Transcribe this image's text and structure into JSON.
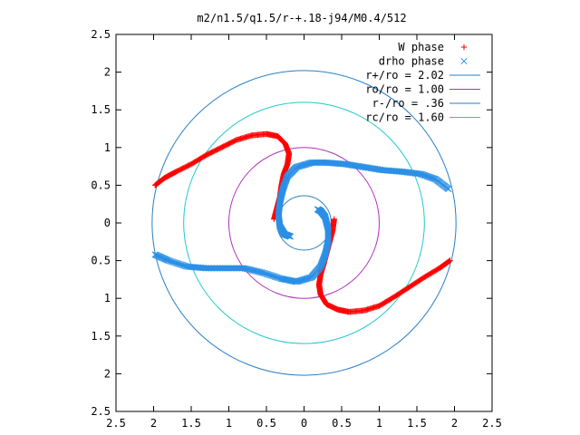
{
  "chart_data": {
    "type": "scatter",
    "title": "m2/n1.5/q1.5/r-+.18-j94/M0.4/512",
    "xlabel": "",
    "ylabel": "",
    "xlim": [
      -2.5,
      2.5
    ],
    "ylim": [
      -2.5,
      2.5
    ],
    "x_tick_values": [
      -2.5,
      -2,
      -1.5,
      -1,
      -0.5,
      0,
      0.5,
      1,
      1.5,
      2,
      2.5
    ],
    "x_tick_labels": [
      "2.5",
      "2",
      "1.5",
      "1",
      "0.5",
      "0",
      "0.5",
      "1",
      "1.5",
      "2",
      "2.5"
    ],
    "y_tick_values": [
      2.5,
      2,
      1.5,
      1,
      0.5,
      0,
      -0.5,
      -1,
      -1.5,
      -2,
      -2.5
    ],
    "y_tick_labels": [
      "2.5",
      "2",
      "1.5",
      "1",
      "0.5",
      "0",
      "0.5",
      "1",
      "1.5",
      "2",
      "2.5"
    ],
    "grid": false,
    "legend_position": "top-right",
    "series": [
      {
        "name": "W phase",
        "kind": "points",
        "marker": "plus",
        "color": "#ff0000",
        "arms": [
          [
            [
              -1.98,
              0.5
            ],
            [
              -1.85,
              0.6
            ],
            [
              -1.7,
              0.68
            ],
            [
              -1.5,
              0.78
            ],
            [
              -1.3,
              0.9
            ],
            [
              -1.1,
              1.0
            ],
            [
              -0.9,
              1.1
            ],
            [
              -0.7,
              1.16
            ],
            [
              -0.5,
              1.18
            ],
            [
              -0.35,
              1.15
            ],
            [
              -0.25,
              1.05
            ],
            [
              -0.2,
              0.92
            ],
            [
              -0.22,
              0.78
            ],
            [
              -0.27,
              0.65
            ],
            [
              -0.3,
              0.5
            ],
            [
              -0.32,
              0.35
            ],
            [
              -0.36,
              0.2
            ],
            [
              -0.4,
              0.05
            ]
          ],
          [
            [
              1.94,
              -0.5
            ],
            [
              1.8,
              -0.6
            ],
            [
              1.6,
              -0.72
            ],
            [
              1.4,
              -0.85
            ],
            [
              1.2,
              -0.98
            ],
            [
              1.0,
              -1.1
            ],
            [
              0.8,
              -1.16
            ],
            [
              0.6,
              -1.18
            ],
            [
              0.45,
              -1.15
            ],
            [
              0.3,
              -1.08
            ],
            [
              0.22,
              -0.95
            ],
            [
              0.2,
              -0.82
            ],
            [
              0.22,
              -0.68
            ],
            [
              0.26,
              -0.55
            ],
            [
              0.3,
              -0.4
            ],
            [
              0.34,
              -0.25
            ],
            [
              0.38,
              -0.1
            ],
            [
              0.4,
              0.05
            ]
          ]
        ]
      },
      {
        "name": "drho phase",
        "kind": "points",
        "marker": "cross",
        "color": "#2b8fe6",
        "arms": [
          [
            [
              1.92,
              0.45
            ],
            [
              1.75,
              0.58
            ],
            [
              1.55,
              0.65
            ],
            [
              1.3,
              0.68
            ],
            [
              1.05,
              0.7
            ],
            [
              0.8,
              0.74
            ],
            [
              0.55,
              0.78
            ],
            [
              0.3,
              0.8
            ],
            [
              0.1,
              0.8
            ],
            [
              -0.1,
              0.74
            ],
            [
              -0.22,
              0.62
            ],
            [
              -0.28,
              0.45
            ],
            [
              -0.32,
              0.28
            ],
            [
              -0.34,
              0.1
            ],
            [
              -0.32,
              -0.05
            ],
            [
              -0.26,
              -0.15
            ],
            [
              -0.18,
              -0.18
            ]
          ],
          [
            [
              -1.98,
              -0.42
            ],
            [
              -1.8,
              -0.5
            ],
            [
              -1.55,
              -0.58
            ],
            [
              -1.3,
              -0.6
            ],
            [
              -1.05,
              -0.6
            ],
            [
              -0.8,
              -0.6
            ],
            [
              -0.55,
              -0.66
            ],
            [
              -0.3,
              -0.74
            ],
            [
              -0.1,
              -0.78
            ],
            [
              0.1,
              -0.72
            ],
            [
              0.22,
              -0.58
            ],
            [
              0.28,
              -0.42
            ],
            [
              0.32,
              -0.25
            ],
            [
              0.32,
              -0.08
            ],
            [
              0.28,
              0.08
            ],
            [
              0.22,
              0.16
            ],
            [
              0.18,
              0.18
            ]
          ]
        ]
      },
      {
        "name": "r+/ro = 2.02",
        "kind": "circle",
        "radius": 2.02,
        "color": "#2a7fc6"
      },
      {
        "name": "ro/ro = 1.00",
        "kind": "circle",
        "radius": 1.0,
        "color": "#b030c0"
      },
      {
        "name": "r-/ro = .36",
        "kind": "circle",
        "radius": 0.36,
        "color": "#2a7fc6"
      },
      {
        "name": "rc/ro = 1.60",
        "kind": "circle",
        "radius": 1.6,
        "color": "#20c8d0"
      }
    ]
  }
}
